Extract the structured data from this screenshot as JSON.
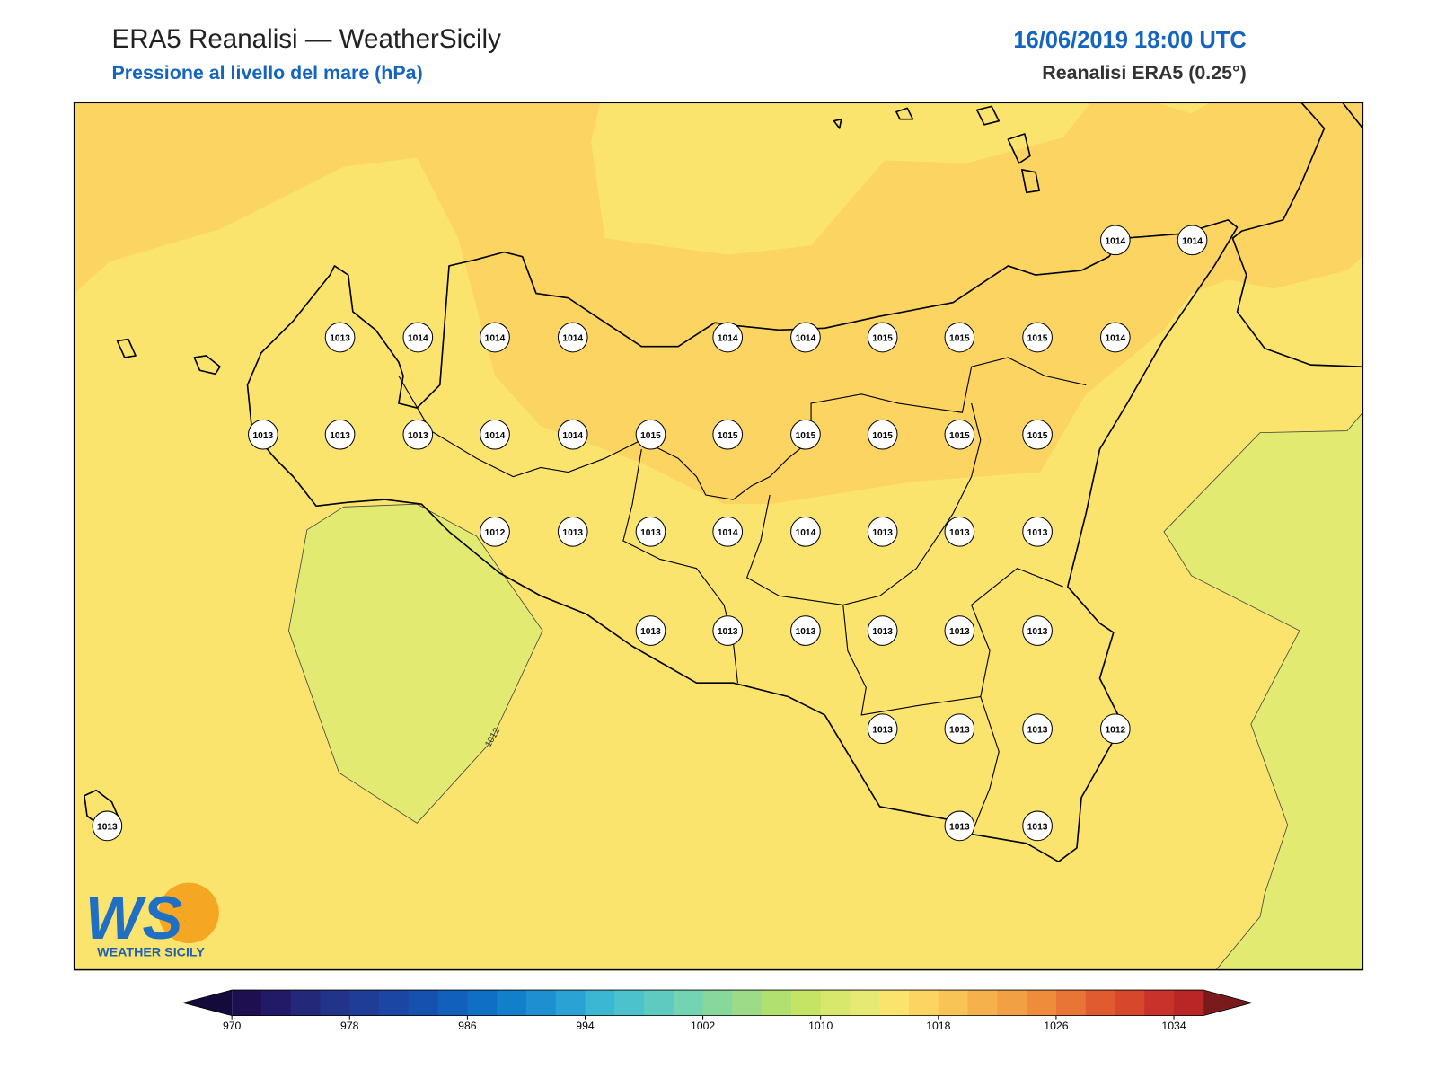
{
  "header": {
    "title": "ERA5 Reanalisi — WeatherSicily",
    "subtitle": "Pressione al livello del mare (hPa)",
    "datetime": "16/06/2019 18:00 UTC",
    "source": "Reanalisi ERA5 (0.25°)"
  },
  "contour_label": "1012",
  "stations": [
    1014,
    1014,
    1013,
    1014,
    1014,
    1014,
    1014,
    1014,
    1015,
    1015,
    1015,
    1014,
    1013,
    1013,
    1013,
    1014,
    1014,
    1015,
    1015,
    1015,
    1015,
    1015,
    1015,
    1012,
    1013,
    1013,
    1014,
    1014,
    1013,
    1013,
    1013,
    1013,
    1013,
    1013,
    1013,
    1013,
    1013,
    1013,
    1013,
    1013,
    1012,
    1013,
    1013,
    1013
  ],
  "colorbar": {
    "xlim": [
      970,
      1036
    ],
    "xticks": [
      970,
      978,
      986,
      994,
      1002,
      1010,
      1018,
      1026,
      1034
    ],
    "colors": [
      "#1e1050",
      "#221a66",
      "#232878",
      "#22348a",
      "#1f3c96",
      "#1c46a4",
      "#1651b0",
      "#1160bc",
      "#0f6fc4",
      "#127fcb",
      "#1e8fd0",
      "#2aa3d4",
      "#3cb7d2",
      "#4cc3cc",
      "#5fcbc0",
      "#74d3b0",
      "#88d89c",
      "#9ddb88",
      "#b1e070",
      "#c5e466",
      "#d8e86c",
      "#e6ea74",
      "#fbe46e",
      "#fbd462",
      "#f8c456",
      "#f5b24c",
      "#f2a044",
      "#ee8c3c",
      "#e87536",
      "#e05c30",
      "#d6472c",
      "#c8322a",
      "#b82626"
    ],
    "extend_colors": [
      "#150a3c",
      "#7a1a1a"
    ]
  },
  "logo": {
    "mark": "WS",
    "text": "WEATHER SICILY"
  }
}
